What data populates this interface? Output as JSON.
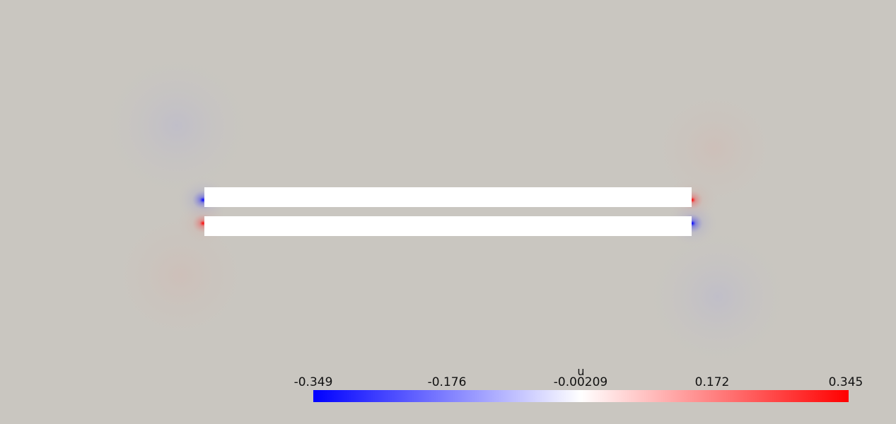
{
  "scalar_bar": {
    "title": "u",
    "tick_labels": [
      "-0.349",
      "-0.176",
      "-0.00209",
      "0.172",
      "0.345"
    ],
    "range": [
      -0.349,
      0.345
    ],
    "colors": {
      "low": "#0000ff",
      "mid": "#ffffff",
      "high": "#ff0000"
    }
  },
  "scene": {
    "background_color": "#c9c6c0",
    "object_color": "#ffffff"
  }
}
